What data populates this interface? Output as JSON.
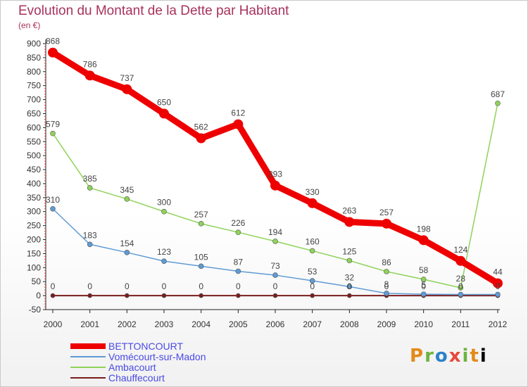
{
  "chart_data": {
    "type": "line",
    "title": "Evolution du Montant de la Dette par Habitant",
    "unit": "(en €)",
    "x": [
      "2000",
      "2001",
      "2002",
      "2003",
      "2004",
      "2005",
      "2006",
      "2007",
      "2008",
      "2009",
      "2010",
      "2011",
      "2012"
    ],
    "ylim": [
      -50,
      900
    ],
    "yticks": [
      -50,
      0,
      50,
      100,
      150,
      200,
      250,
      300,
      350,
      400,
      450,
      500,
      550,
      600,
      650,
      700,
      750,
      800,
      850,
      900
    ],
    "grid": false,
    "legend_position": "bottom-left",
    "series": [
      {
        "name": "BETTONCOURT",
        "color": "#ee0000",
        "values": [
          868,
          786,
          737,
          650,
          562,
          612,
          393,
          330,
          263,
          257,
          198,
          124,
          44
        ],
        "labels": [
          "868",
          "786",
          "737",
          "650",
          "562",
          "612",
          "393",
          "330",
          "263",
          "257",
          "198",
          "124",
          "44"
        ]
      },
      {
        "name": "Vomécourt-sur-Madon",
        "color": "#5f9bd4",
        "values": [
          310,
          183,
          154,
          123,
          105,
          87,
          73,
          53,
          32,
          8,
          5,
          4,
          4
        ],
        "labels": [
          "310",
          "183",
          "154",
          "123",
          "105",
          "87",
          "73",
          "53",
          "32",
          "8",
          "5",
          "",
          ""
        ]
      },
      {
        "name": "Ambacourt",
        "color": "#8fd35a",
        "values": [
          579,
          385,
          345,
          300,
          257,
          226,
          194,
          160,
          125,
          86,
          58,
          28,
          687
        ],
        "labels": [
          "579",
          "385",
          "345",
          "300",
          "257",
          "226",
          "194",
          "160",
          "125",
          "86",
          "58",
          "28",
          "687"
        ]
      },
      {
        "name": "Chauffecourt",
        "color": "#7a1c1c",
        "values": [
          0,
          0,
          0,
          0,
          0,
          0,
          0,
          0,
          0,
          0,
          0,
          0,
          0
        ],
        "labels": [
          "0",
          "0",
          "0",
          "0",
          "0",
          "0",
          "0",
          "0",
          "0",
          "0",
          "0",
          "0",
          "0"
        ]
      }
    ]
  },
  "logo": {
    "letters": [
      "P",
      "r",
      "o",
      "x",
      "i",
      "t",
      "i"
    ]
  }
}
